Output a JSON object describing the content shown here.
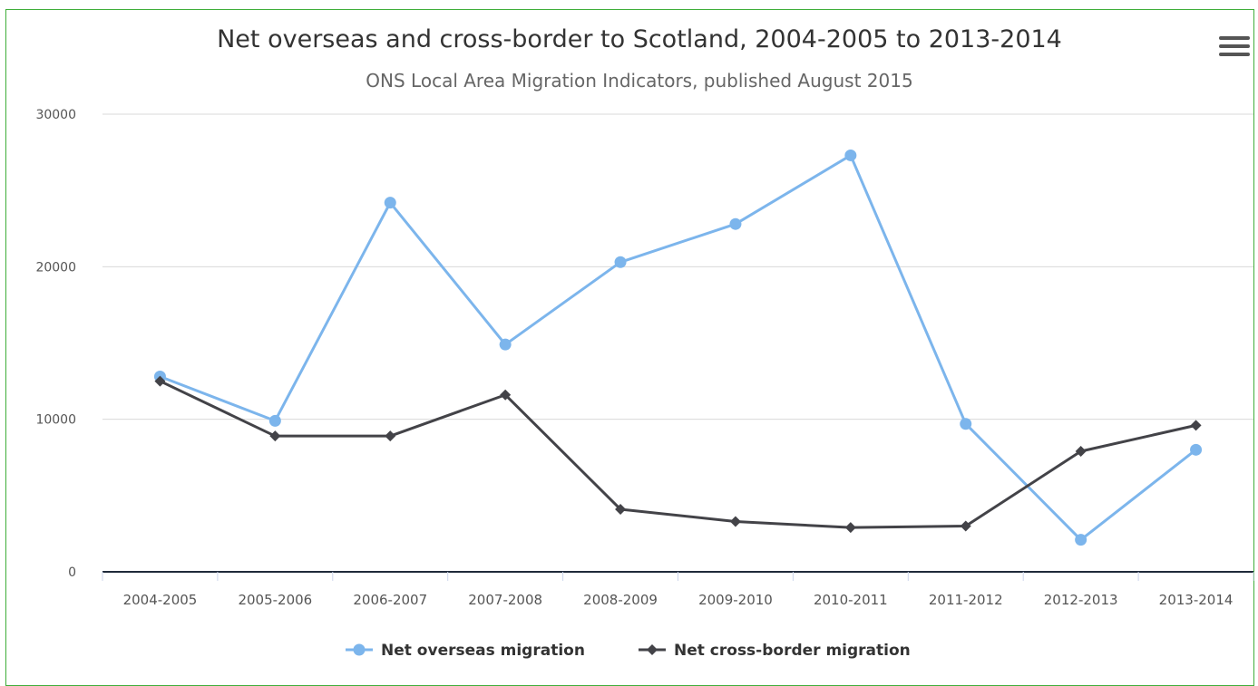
{
  "chart_data": {
    "type": "line",
    "title": "Net overseas and cross-border to Scotland, 2004-2005 to 2013-2014",
    "subtitle": "ONS Local Area Migration Indicators, published August 2015",
    "categories": [
      "2004-2005",
      "2005-2006",
      "2006-2007",
      "2007-2008",
      "2008-2009",
      "2009-2010",
      "2010-2011",
      "2011-2012",
      "2012-2013",
      "2013-2014"
    ],
    "ylim": [
      0,
      30000
    ],
    "yticks": [
      0,
      10000,
      20000,
      30000
    ],
    "grid": true,
    "legend_position": "bottom-center",
    "series": [
      {
        "name": "Net overseas migration",
        "color": "#7cb5ec",
        "marker": "circle",
        "values": [
          12800,
          9900,
          24200,
          14900,
          20300,
          22800,
          27300,
          9700,
          2100,
          8000
        ]
      },
      {
        "name": "Net cross-border migration",
        "color": "#434348",
        "marker": "diamond",
        "values": [
          12500,
          8900,
          8900,
          11600,
          4100,
          3300,
          2900,
          3000,
          7900,
          9600
        ]
      }
    ]
  },
  "menu_icon": "hamburger-menu-icon"
}
